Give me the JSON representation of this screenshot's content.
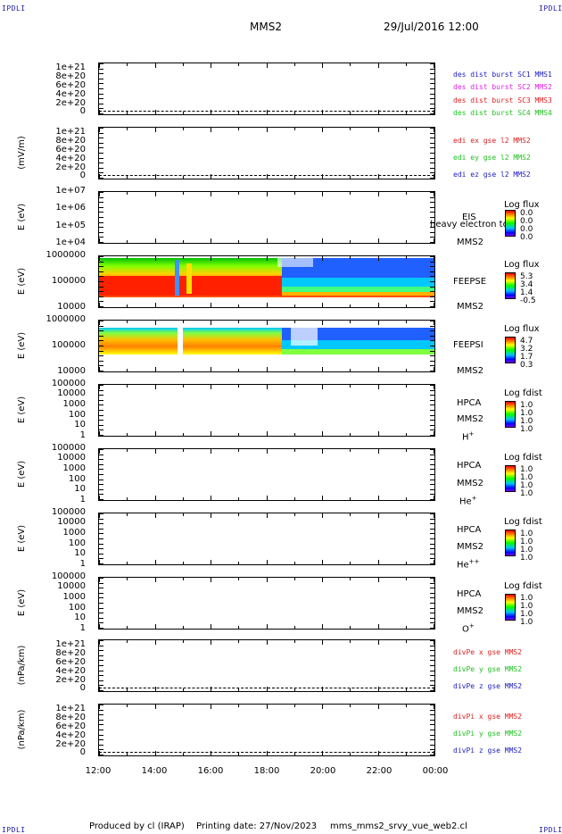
{
  "corners": {
    "tl": "IPDLI",
    "tr": "IPDLI",
    "bl": "IPDLI",
    "br": "IPDLI"
  },
  "header": {
    "spacecraft": "MMS2",
    "datetime": "29/Jul/2016 12:00"
  },
  "footer": {
    "produced": "Produced by cl (IRAP)",
    "printing": "Printing date: 27/Nov/2023",
    "file": "mms_mms2_srvy_vue_web2.cl"
  },
  "chart_data": {
    "type": "heatmap",
    "x_ticks": [
      "12:00",
      "14:00",
      "16:00",
      "18:00",
      "20:00",
      "22:00",
      "00:00"
    ],
    "panels": [
      {
        "id": "p1",
        "yticks": [
          "1e+21",
          "8e+20",
          "6e+20",
          "4e+20",
          "2e+20",
          "0"
        ],
        "ylabel": "",
        "legend": [
          {
            "text": "des dist burst SC1 MMS1",
            "color": "#2020c0"
          },
          {
            "text": "des dist burst SC2 MMS2",
            "color": "#e020e0"
          },
          {
            "text": "des dist burst SC3 MMS3",
            "color": "#e02020"
          },
          {
            "text": "des dist burst SC4 MMS4",
            "color": "#20c020"
          }
        ]
      },
      {
        "id": "p2",
        "yticks": [
          "1e+21",
          "8e+20",
          "6e+20",
          "4e+20",
          "2e+20",
          "0"
        ],
        "ylabel": "(mV/m)",
        "legend": [
          {
            "text": "edi ex gse l2 MMS2",
            "color": "#e02020"
          },
          {
            "text": "edi ey gse l2 MMS2",
            "color": "#20c020"
          },
          {
            "text": "edi ez gse l2 MMS2",
            "color": "#2020c0"
          }
        ]
      },
      {
        "id": "p3",
        "yticks": [
          "1e+07",
          "1e+06",
          "1e+05",
          "1e+04"
        ],
        "ylabel": "E (eV)",
        "instrument": "EIS",
        "extra": "heavy electron to",
        "sc": "MMS2",
        "species": "",
        "cb_title": "Log flux",
        "cb_values": [
          "0.0",
          "0.0",
          "0.0",
          "0.0"
        ]
      },
      {
        "id": "p4",
        "yticks": [
          "1000000",
          "100000",
          "10000"
        ],
        "ylabel": "E (eV)",
        "instrument": "FEEPSE",
        "sc": "MMS2",
        "cb_title": "Log flux",
        "cb_values": [
          "5.3",
          "3.4",
          "1.4",
          "-0.5"
        ]
      },
      {
        "id": "p5",
        "yticks": [
          "1000000",
          "100000",
          "10000"
        ],
        "ylabel": "E (eV)",
        "instrument": "FEEPSI",
        "sc": "MMS2",
        "cb_title": "Log flux",
        "cb_values": [
          "4.7",
          "3.2",
          "1.7",
          "0.3"
        ]
      },
      {
        "id": "p6",
        "yticks": [
          "100000",
          "10000",
          "1000",
          "100",
          "10",
          "1"
        ],
        "ylabel": "E (eV)",
        "instrument": "HPCA",
        "sc": "MMS2",
        "species": "H",
        "species_sup": "+",
        "cb_title": "Log fdist",
        "cb_values": [
          "1.0",
          "1.0",
          "1.0",
          "1.0"
        ]
      },
      {
        "id": "p7",
        "yticks": [
          "100000",
          "10000",
          "1000",
          "100",
          "10",
          "1"
        ],
        "ylabel": "E (eV)",
        "instrument": "HPCA",
        "sc": "MMS2",
        "species": "He",
        "species_sup": "+",
        "cb_title": "Log fdist",
        "cb_values": [
          "1.0",
          "1.0",
          "1.0",
          "1.0"
        ]
      },
      {
        "id": "p8",
        "yticks": [
          "100000",
          "10000",
          "1000",
          "100",
          "10",
          "1"
        ],
        "ylabel": "E (eV)",
        "instrument": "HPCA",
        "sc": "MMS2",
        "species": "He",
        "species_sup": "++",
        "cb_title": "Log fdist",
        "cb_values": [
          "1.0",
          "1.0",
          "1.0",
          "1.0"
        ]
      },
      {
        "id": "p9",
        "yticks": [
          "100000",
          "10000",
          "1000",
          "100",
          "10",
          "1"
        ],
        "ylabel": "E (eV)",
        "instrument": "HPCA",
        "sc": "MMS2",
        "species": "O",
        "species_sup": "+",
        "cb_title": "Log fdist",
        "cb_values": [
          "1.0",
          "1.0",
          "1.0",
          "1.0"
        ]
      },
      {
        "id": "p10",
        "yticks": [
          "1e+21",
          "8e+20",
          "6e+20",
          "4e+20",
          "2e+20",
          "0"
        ],
        "ylabel": "(nPa/km)",
        "legend": [
          {
            "text": "divPe x gse MMS2",
            "color": "#e02020"
          },
          {
            "text": "divPe y gse MMS2",
            "color": "#20c020"
          },
          {
            "text": "divPe z gse MMS2",
            "color": "#2020c0"
          }
        ]
      },
      {
        "id": "p11",
        "yticks": [
          "1e+21",
          "8e+20",
          "6e+20",
          "4e+20",
          "2e+20",
          "0"
        ],
        "ylabel": "(nPa/km)",
        "legend": [
          {
            "text": "divPi x gse MMS2",
            "color": "#e02020"
          },
          {
            "text": "divPi y gse MMS2",
            "color": "#20c020"
          },
          {
            "text": "divPi z gse MMS2",
            "color": "#2020c0"
          }
        ]
      }
    ]
  },
  "colors": {
    "scale_red": "#ff0000",
    "scale_yellow": "#ffff00",
    "scale_green": "#00ff00",
    "scale_blue": "#0000ff"
  }
}
